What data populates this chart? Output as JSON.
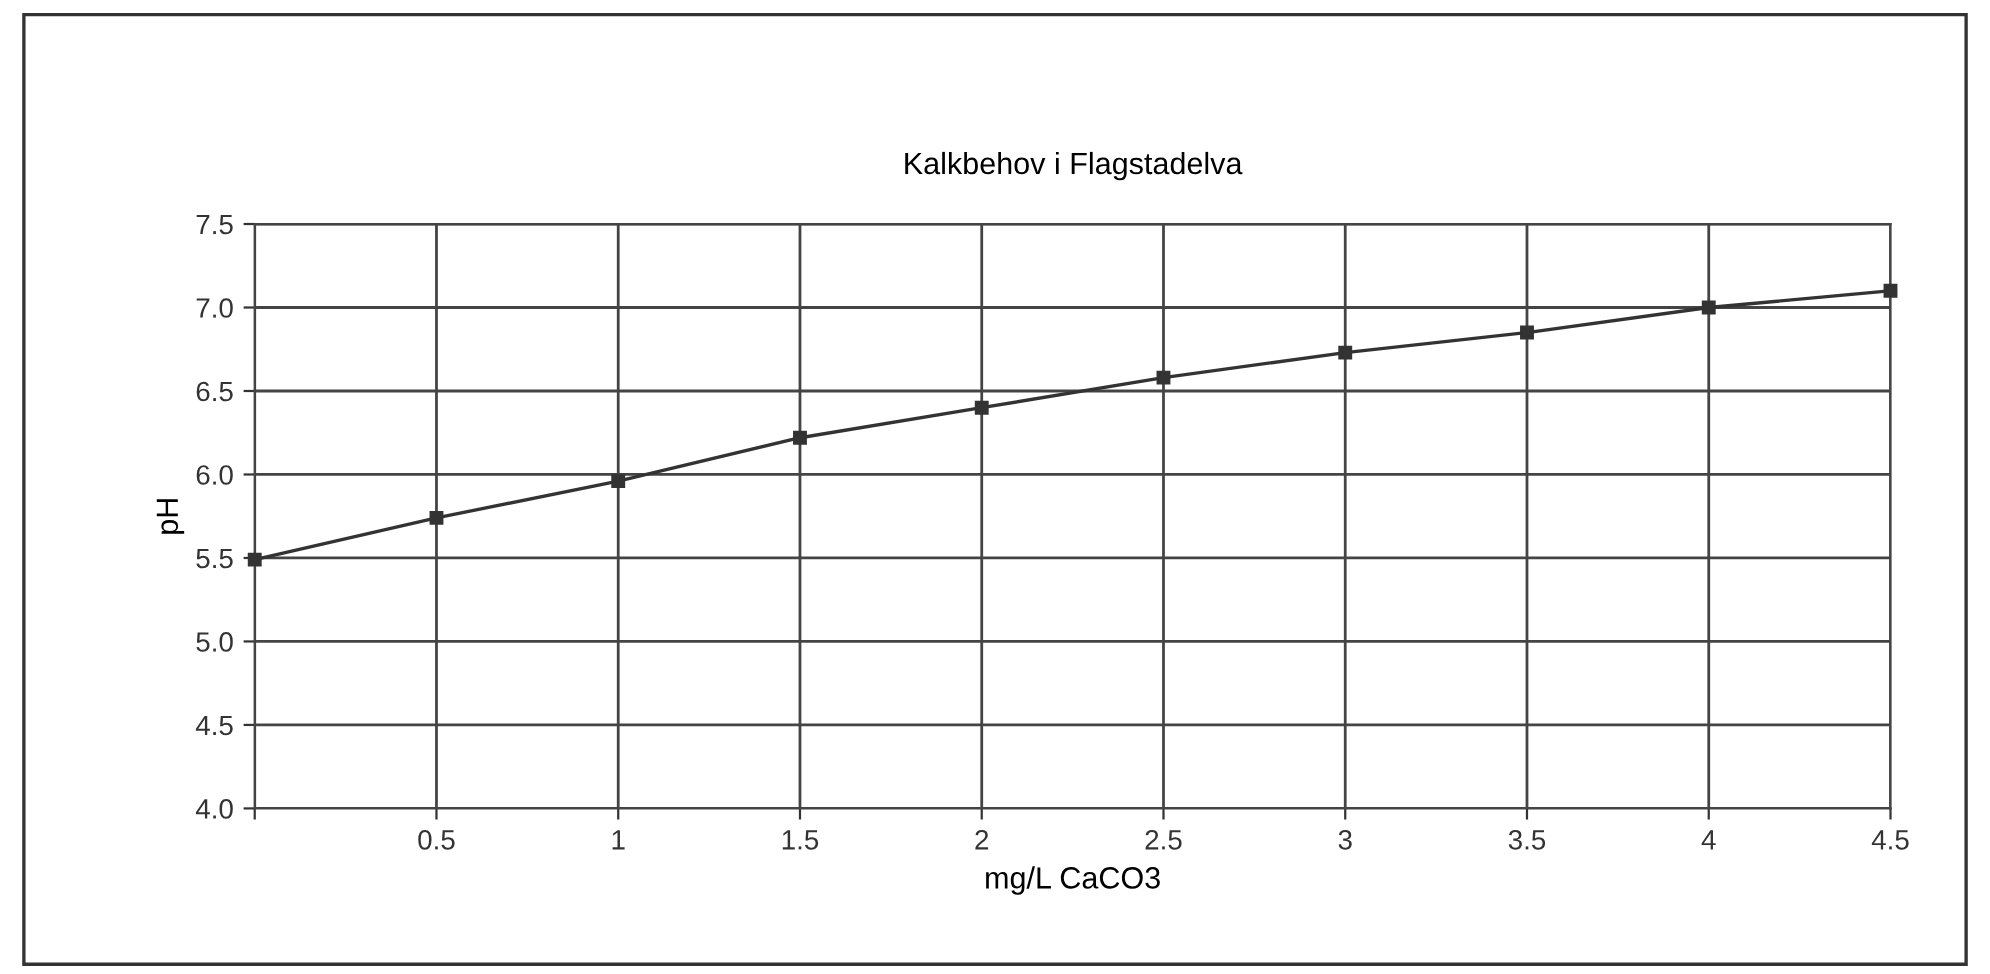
{
  "chart_data": {
    "type": "line",
    "title": "Kalkbehov i Flagstadelva",
    "xlabel": "mg/L CaCO3",
    "ylabel": "pH",
    "x": [
      0,
      0.5,
      1,
      1.5,
      2,
      2.5,
      3,
      3.5,
      4,
      4.5
    ],
    "series": [
      {
        "color": "#333333",
        "values": [
          5.49,
          5.74,
          5.96,
          6.22,
          6.4,
          6.58,
          6.73,
          6.85,
          7.0,
          7.1
        ]
      }
    ],
    "xlim": [
      0,
      4.5
    ],
    "xticks": [
      {
        "value": 0,
        "label": null
      },
      0.5,
      1,
      1.5,
      2,
      2.5,
      3,
      3.5,
      4,
      4.5
    ],
    "ylim": [
      4.0,
      7.5
    ],
    "yticks": [
      {
        "value": 4.0,
        "label": "4.0"
      },
      4.5,
      {
        "value": 5.0,
        "label": "5.0"
      },
      5.5,
      {
        "value": 6.0,
        "label": "6.0"
      },
      6.5,
      {
        "value": 7.0,
        "label": "7.0"
      },
      7.5
    ],
    "grid": true,
    "marker": "square",
    "line_style": "solid"
  }
}
